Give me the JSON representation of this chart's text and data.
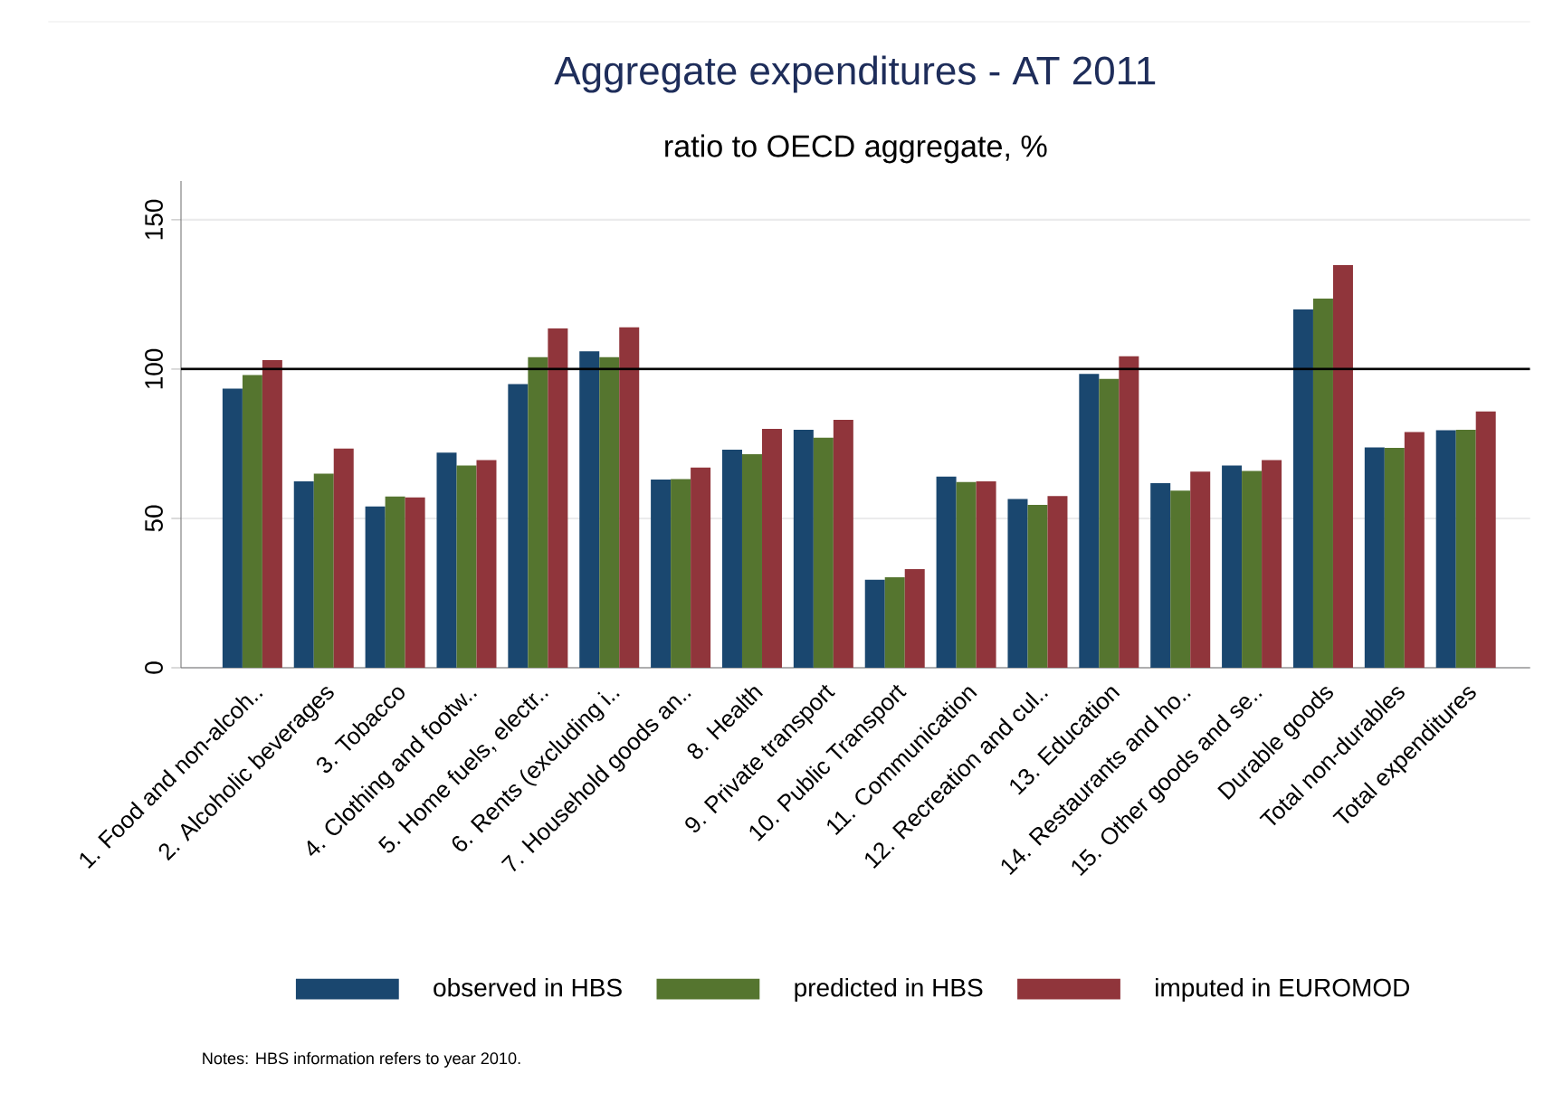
{
  "chart_data": {
    "type": "bar",
    "title": "Aggregate expenditures - AT 2011",
    "subtitle": "ratio to OECD aggregate, %",
    "categories": [
      "1. Food and non-alcoh..",
      "2. Alcoholic beverages",
      "3. Tobacco",
      "4. Clothing and footw..",
      "5. Home fuels, electr..",
      "6. Rents (excluding i..",
      "7. Household goods an..",
      "8. Health",
      "9. Private transport",
      "10. Public Transport",
      "11. Communication",
      "12. Recreation and cul..",
      "13. Education",
      "14. Restaurants and ho..",
      "15. Other goods and se..",
      "Durable goods",
      "Total non-durables",
      "Total expenditures"
    ],
    "series": [
      {
        "name": "observed in HBS",
        "color": "#1a476f",
        "values": [
          93.5,
          62.4,
          54,
          72,
          95,
          106,
          63,
          73,
          79.7,
          29.5,
          64,
          56.5,
          98.4,
          61.8,
          67.7,
          120,
          73.8,
          79.5
        ]
      },
      {
        "name": "predicted in HBS",
        "color": "#55752f",
        "values": [
          98,
          65,
          57.3,
          67.7,
          104,
          104,
          63.2,
          71.5,
          77,
          30.3,
          62.2,
          54.5,
          96.7,
          59.3,
          65.9,
          123.6,
          73.6,
          79.7
        ]
      },
      {
        "name": "imputed in EUROMOD",
        "color": "#90353b",
        "values": [
          103,
          73.4,
          57,
          69.5,
          113.6,
          114,
          67,
          80,
          83,
          33,
          62.4,
          57.5,
          104.3,
          65.7,
          69.5,
          134.8,
          78.9,
          85.8
        ]
      }
    ],
    "ylim": [
      0,
      163
    ],
    "yticks": [
      0,
      50,
      100,
      150
    ],
    "grid": "y",
    "legend": "bottom",
    "ref_lines": [
      {
        "axis": "y",
        "value": 100,
        "color": "#000000"
      }
    ],
    "annotations": [
      "Notes: HBS information refers to year 2010."
    ]
  }
}
